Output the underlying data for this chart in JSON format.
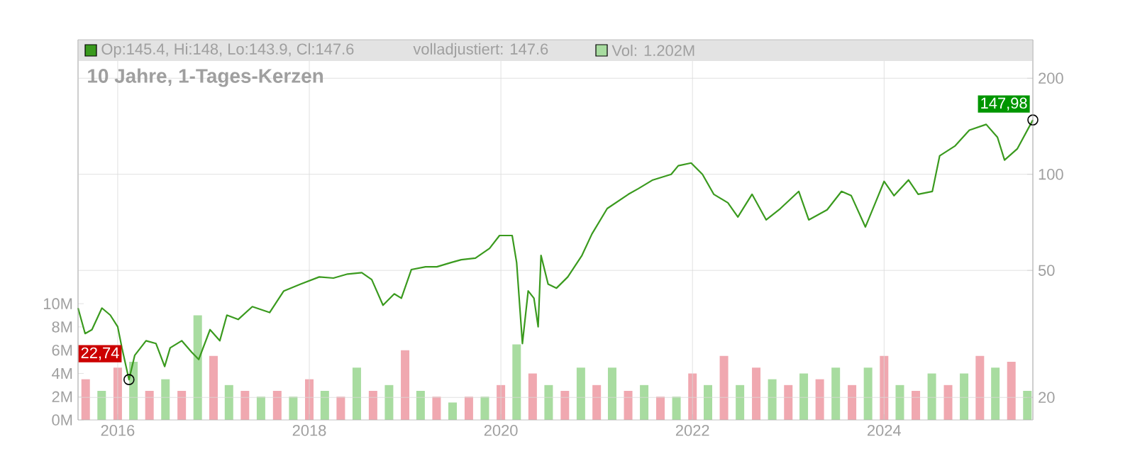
{
  "chart_data": {
    "type": "line",
    "title": "10 Jahre, 1-Tages-Kerzen",
    "log": "y",
    "grid": true,
    "legend": "top",
    "xlim": [
      "2015-08-03",
      "2025-07-22"
    ],
    "xticks": [
      "2016",
      "2018",
      "2020",
      "2022",
      "2024"
    ],
    "ylim": [
      17,
      264
    ],
    "yticks": [
      20,
      50,
      100,
      200
    ],
    "y2lim": [
      0,
      32.7
    ],
    "y2ticks": [
      {
        "value": 0,
        "label": "0M"
      },
      {
        "value": 2,
        "label": "2M"
      },
      {
        "value": 4,
        "label": "4M"
      },
      {
        "value": 6,
        "label": "6M"
      },
      {
        "value": 8,
        "label": "8M"
      },
      {
        "value": 10,
        "label": "10M"
      }
    ],
    "series": [
      {
        "name": "Op:145.4, Hi:148, Lo:143.9, Cl:147.6",
        "color": "#3a9a1e",
        "x": [
          "2015-08-03",
          "2015-08-30",
          "2015-09-25",
          "2015-11-02",
          "2015-12-04",
          "2016-01-01",
          "2016-01-17",
          "2016-02-13",
          "2016-03-06",
          "2016-04-18",
          "2016-05-26",
          "2016-06-28",
          "2016-07-19",
          "2016-09-01",
          "2016-10-09",
          "2016-11-05",
          "2016-12-18",
          "2017-01-25",
          "2017-02-21",
          "2017-04-05",
          "2017-05-29",
          "2017-08-03",
          "2017-09-26",
          "2017-11-29",
          "2018-02-08",
          "2018-04-03",
          "2018-05-27",
          "2018-07-20",
          "2018-08-27",
          "2018-10-09",
          "2018-11-21",
          "2018-12-18",
          "2019-01-25",
          "2019-03-20",
          "2019-05-02",
          "2019-06-25",
          "2019-08-03",
          "2019-09-26",
          "2019-11-19",
          "2019-12-27",
          "2020-02-13",
          "2020-03-01",
          "2020-03-23",
          "2020-04-14",
          "2020-05-06",
          "2020-05-22",
          "2020-06-02",
          "2020-06-29",
          "2020-07-31",
          "2020-09-12",
          "2020-11-05",
          "2020-12-13",
          "2021-02-10",
          "2021-05-02",
          "2021-06-09",
          "2021-08-03",
          "2021-10-12",
          "2021-11-08",
          "2021-12-27",
          "2022-02-08",
          "2022-03-23",
          "2022-05-16",
          "2022-06-23",
          "2022-08-16",
          "2022-10-09",
          "2022-12-02",
          "2023-02-10",
          "2023-03-20",
          "2023-05-29",
          "2023-07-23",
          "2023-08-29",
          "2023-10-22",
          "2023-11-29",
          "2024-01-01",
          "2024-02-08",
          "2024-04-03",
          "2024-05-10",
          "2024-07-03",
          "2024-07-31",
          "2024-09-28",
          "2024-11-21",
          "2025-01-25",
          "2025-03-09",
          "2025-04-05",
          "2025-05-24",
          "2025-07-22"
        ],
        "values": [
          38.1,
          31.7,
          32.6,
          38.1,
          36.2,
          33.3,
          28.6,
          22.74,
          27.1,
          30.1,
          29.5,
          25,
          28.6,
          30.1,
          27.7,
          26.3,
          32.6,
          30.1,
          36.2,
          35.1,
          38.5,
          36.9,
          43.1,
          45.3,
          47.7,
          47.3,
          48.7,
          49.2,
          46.8,
          38.9,
          42.2,
          40.9,
          50.3,
          51.3,
          51.3,
          52.9,
          54.0,
          54.6,
          58.6,
          64.3,
          64.3,
          52.9,
          29.5,
          43.1,
          40.9,
          33.3,
          55.7,
          45.3,
          44.0,
          47.7,
          55.7,
          65.0,
          78.1,
          86.6,
          90.2,
          96.0,
          100,
          106.4,
          108.5,
          100,
          86.6,
          81.4,
          73.5,
          86.6,
          72.0,
          78.1,
          88.4,
          72.0,
          77.4,
          88.4,
          85.7,
          68.4,
          81.4,
          95.0,
          85.7,
          96.0,
          86.6,
          88.4,
          114.3,
          122.8,
          137.5,
          143.3,
          130.6,
          110.8,
          120.3,
          147.98
        ]
      },
      {
        "name": "Vol: 1.202M",
        "type": "bar",
        "axis": "y2",
        "color": "#a8dca0",
        "x": [
          "2015-09",
          "2015-11",
          "2016-01",
          "2016-03",
          "2016-05",
          "2016-07",
          "2016-09",
          "2016-11",
          "2017-01",
          "2017-03",
          "2017-05",
          "2017-07",
          "2017-09",
          "2017-11",
          "2018-01",
          "2018-03",
          "2018-05",
          "2018-07",
          "2018-09",
          "2018-11",
          "2019-01",
          "2019-03",
          "2019-05",
          "2019-07",
          "2019-09",
          "2019-11",
          "2020-01",
          "2020-03",
          "2020-05",
          "2020-07",
          "2020-09",
          "2020-11",
          "2021-01",
          "2021-03",
          "2021-05",
          "2021-07",
          "2021-09",
          "2021-11",
          "2022-01",
          "2022-03",
          "2022-05",
          "2022-07",
          "2022-09",
          "2022-11",
          "2023-01",
          "2023-03",
          "2023-05",
          "2023-07",
          "2023-09",
          "2023-11",
          "2024-01",
          "2024-03",
          "2024-05",
          "2024-07",
          "2024-09",
          "2024-11",
          "2025-01",
          "2025-03",
          "2025-05",
          "2025-07"
        ],
        "values": [
          3.5,
          2.5,
          4.5,
          5.0,
          2.5,
          3.5,
          2.5,
          9.0,
          5.5,
          3.0,
          2.5,
          2.0,
          2.5,
          2.0,
          3.5,
          2.5,
          2.0,
          4.5,
          2.5,
          3.0,
          6.0,
          2.5,
          2.0,
          1.5,
          2.0,
          2.0,
          3.0,
          6.5,
          4.0,
          3.0,
          2.5,
          4.5,
          3.0,
          4.5,
          2.5,
          3.0,
          2.0,
          2.0,
          4.0,
          3.0,
          5.5,
          3.0,
          4.5,
          3.5,
          3.0,
          4.0,
          3.5,
          4.5,
          3.0,
          4.5,
          5.5,
          3.0,
          2.5,
          4.0,
          3.0,
          4.0,
          5.5,
          4.5,
          5.0,
          2.5
        ],
        "colors": [
          "#f0a8b0",
          "#a8dca0",
          "#f0a8b0",
          "#a8dca0",
          "#f0a8b0",
          "#a8dca0",
          "#f0a8b0",
          "#a8dca0",
          "#f0a8b0",
          "#a8dca0",
          "#f0a8b0",
          "#a8dca0",
          "#f0a8b0",
          "#a8dca0",
          "#f0a8b0",
          "#a8dca0",
          "#f0a8b0",
          "#a8dca0",
          "#f0a8b0",
          "#a8dca0",
          "#f0a8b0",
          "#a8dca0",
          "#f0a8b0",
          "#a8dca0",
          "#f0a8b0",
          "#a8dca0",
          "#f0a8b0",
          "#a8dca0",
          "#f0a8b0",
          "#a8dca0",
          "#f0a8b0",
          "#a8dca0",
          "#f0a8b0",
          "#a8dca0",
          "#f0a8b0",
          "#a8dca0",
          "#f0a8b0",
          "#a8dca0",
          "#f0a8b0",
          "#a8dca0",
          "#f0a8b0",
          "#a8dca0",
          "#f0a8b0",
          "#a8dca0",
          "#f0a8b0",
          "#a8dca0",
          "#f0a8b0",
          "#a8dca0",
          "#f0a8b0",
          "#a8dca0",
          "#f0a8b0",
          "#a8dca0",
          "#f0a8b0",
          "#a8dca0",
          "#f0a8b0",
          "#a8dca0",
          "#f0a8b0",
          "#a8dca0",
          "#f0a8b0",
          "#a8dca0"
        ]
      }
    ],
    "annotations": [
      "volladjustiert: 147.6",
      {
        "text": "147,98",
        "x": "2025-07-22",
        "y": 147.98
      },
      {
        "text": "22,74",
        "x": "2016-02-13",
        "y": 22.74
      }
    ]
  }
}
